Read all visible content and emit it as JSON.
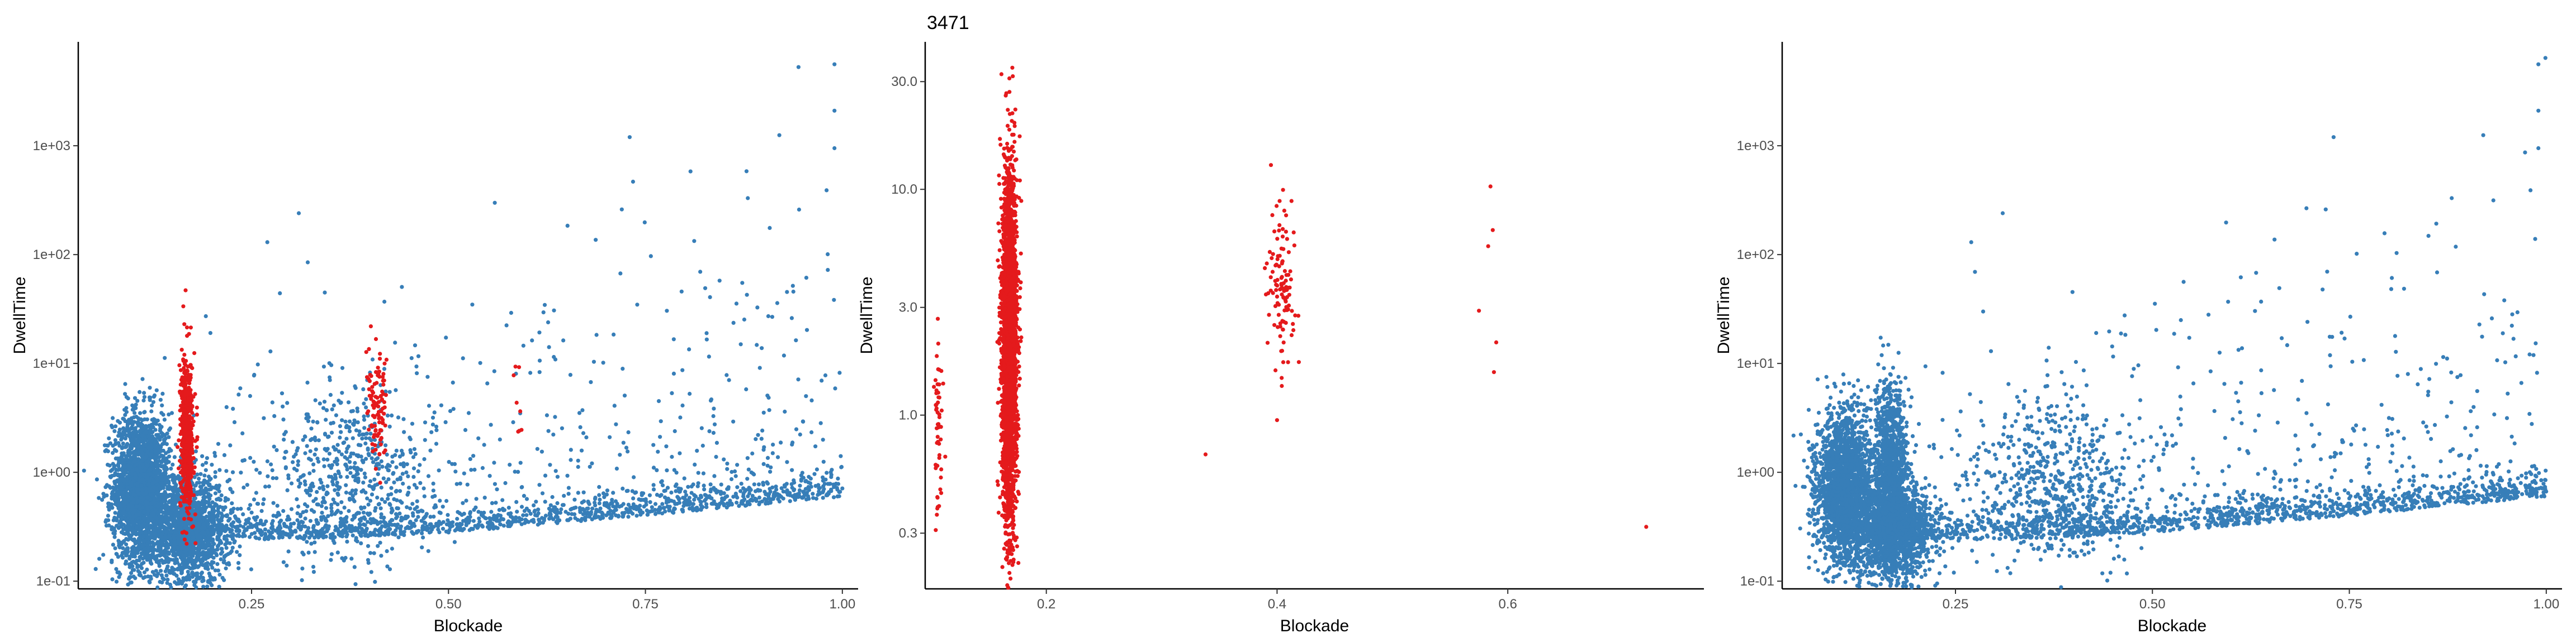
{
  "chart_data": [
    {
      "type": "scatter",
      "title": "",
      "xlabel": "Blockade",
      "ylabel": "DwellTime",
      "xlim": [
        0.03,
        1.02
      ],
      "ylim": [
        0.085,
        9000
      ],
      "yscale": "log",
      "xticks": [
        0.25,
        0.5,
        0.75,
        1.0
      ],
      "xticklabels": [
        "0.25",
        "0.50",
        "0.75",
        "1.00"
      ],
      "yticks": [
        0.1,
        1,
        10,
        100,
        1000
      ],
      "yticklabels": [
        "1e-01",
        "1e+00",
        "1e+01",
        "1e+02",
        "1e+03"
      ],
      "grid": false,
      "legend": "none",
      "series": [
        {
          "color": "#377EB8",
          "clusters": [
            {
              "x_mean": 0.11,
              "x_sd": 0.018,
              "y_logmean": -0.15,
              "y_logsd": 0.35,
              "n": 2200
            },
            {
              "x_mean": 0.17,
              "x_sd": 0.025,
              "y_logmean": -0.55,
              "y_logsd": 0.25,
              "n": 1500
            },
            {
              "x_mean": 0.38,
              "x_sd": 0.05,
              "y_logmean": -0.1,
              "y_logsd": 0.4,
              "n": 500
            }
          ],
          "trend": [
            [
              0.1,
              0.25
            ],
            [
              0.3,
              0.24
            ],
            [
              0.5,
              0.28
            ],
            [
              0.75,
              0.4
            ],
            [
              1.0,
              0.6
            ]
          ],
          "points": [
            [
              0.99,
              5600
            ],
            [
              0.99,
              2100
            ],
            [
              0.99,
              950
            ],
            [
              0.92,
              1250
            ],
            [
              0.73,
              1200
            ],
            [
              0.31,
              240
            ],
            [
              0.27,
              130
            ],
            [
              0.72,
              260
            ],
            [
              0.88,
              330
            ],
            [
              0.98,
              390
            ]
          ]
        },
        {
          "color": "#E41A1C",
          "clusters": [
            {
              "x_mean": 0.168,
              "x_sd": 0.004,
              "y_logmean": 0.35,
              "y_logsd": 0.35,
              "n": 600
            },
            {
              "x_mean": 0.41,
              "x_sd": 0.007,
              "y_logmean": 0.55,
              "y_logsd": 0.25,
              "n": 100
            },
            {
              "x_mean": 0.585,
              "x_sd": 0.004,
              "y_logmean": 0.55,
              "y_logsd": 0.3,
              "n": 8
            }
          ]
        }
      ]
    },
    {
      "type": "scatter",
      "title": "3471",
      "xlabel": "Blockade",
      "ylabel": "DwellTime",
      "xlim": [
        0.095,
        0.77
      ],
      "ylim": [
        0.17,
        45
      ],
      "yscale": "log",
      "xticks": [
        0.2,
        0.4,
        0.6
      ],
      "xticklabels": [
        "0.2",
        "0.4",
        "0.6"
      ],
      "yticks": [
        0.3,
        1,
        3,
        10,
        30
      ],
      "yticklabels": [
        "0.3",
        "1.0",
        "3.0",
        "10.0",
        "30.0"
      ],
      "grid": false,
      "legend": "none",
      "series": [
        {
          "color": "#E41A1C",
          "clusters": [
            {
              "x_mean": 0.168,
              "x_sd": 0.0032,
              "y_logmean": 0.3,
              "y_logsd": 0.38,
              "n": 3000
            },
            {
              "x_mean": 0.107,
              "x_sd": 0.0018,
              "y_logmean": -0.05,
              "y_logsd": 0.2,
              "n": 55
            },
            {
              "x_mean": 0.404,
              "x_sd": 0.006,
              "y_logmean": 0.58,
              "y_logsd": 0.18,
              "n": 110
            }
          ],
          "points": [
            [
              0.168,
              27
            ],
            [
              0.168,
              0.2
            ],
            [
              0.338,
              0.67
            ],
            [
              0.585,
              10.3
            ],
            [
              0.587,
              6.6
            ],
            [
              0.583,
              5.6
            ],
            [
              0.575,
              2.9
            ],
            [
              0.59,
              2.1
            ],
            [
              0.588,
              1.55
            ],
            [
              0.72,
              0.32
            ],
            [
              0.4,
              0.95
            ]
          ]
        }
      ]
    },
    {
      "type": "scatter",
      "title": "",
      "xlabel": "Blockade",
      "ylabel": "DwellTime",
      "xlim": [
        0.03,
        1.02
      ],
      "ylim": [
        0.085,
        9000
      ],
      "yscale": "log",
      "xticks": [
        0.25,
        0.5,
        0.75,
        1.0
      ],
      "xticklabels": [
        "0.25",
        "0.50",
        "0.75",
        "1.00"
      ],
      "yticks": [
        0.1,
        1,
        10,
        100,
        1000
      ],
      "yticklabels": [
        "1e-01",
        "1e+00",
        "1e+01",
        "1e+02",
        "1e+03"
      ],
      "grid": false,
      "legend": "none",
      "series": [
        {
          "color": "#377EB8",
          "clusters": [
            {
              "x_mean": 0.11,
              "x_sd": 0.018,
              "y_logmean": -0.15,
              "y_logsd": 0.35,
              "n": 2200
            },
            {
              "x_mean": 0.17,
              "x_sd": 0.025,
              "y_logmean": -0.55,
              "y_logsd": 0.25,
              "n": 1500
            },
            {
              "x_mean": 0.168,
              "x_sd": 0.01,
              "y_logmean": 0.1,
              "y_logsd": 0.35,
              "n": 900
            },
            {
              "x_mean": 0.38,
              "x_sd": 0.05,
              "y_logmean": -0.1,
              "y_logsd": 0.4,
              "n": 500
            }
          ],
          "trend": [
            [
              0.1,
              0.25
            ],
            [
              0.3,
              0.24
            ],
            [
              0.5,
              0.28
            ],
            [
              0.75,
              0.4
            ],
            [
              1.0,
              0.6
            ]
          ],
          "points": [
            [
              0.99,
              5600
            ],
            [
              0.99,
              2100
            ],
            [
              0.99,
              950
            ],
            [
              0.92,
              1250
            ],
            [
              0.73,
              1200
            ],
            [
              0.31,
              240
            ],
            [
              0.27,
              130
            ],
            [
              0.72,
              260
            ],
            [
              0.88,
              330
            ],
            [
              0.98,
              390
            ]
          ]
        }
      ]
    }
  ]
}
